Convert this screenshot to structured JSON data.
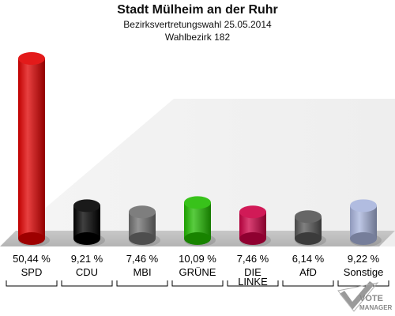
{
  "chart_data": {
    "type": "bar",
    "title": "Stadt Mülheim an der Ruhr",
    "subtitle": "Bezirksvertretungswahl 25.05.2014",
    "subtitle2": "Wahlbezirk 182",
    "categories": [
      "SPD",
      "CDU",
      "MBI",
      "GRÜNE",
      "DIE LINKE",
      "AfD",
      "Sonstige"
    ],
    "category_lines": [
      [
        "SPD"
      ],
      [
        "CDU"
      ],
      [
        "MBI"
      ],
      [
        "GRÜNE"
      ],
      [
        "DIE",
        "LINKE"
      ],
      [
        "AfD"
      ],
      [
        "Sonstige"
      ]
    ],
    "values": [
      50.44,
      9.21,
      7.46,
      10.09,
      7.46,
      6.14,
      9.22
    ],
    "value_labels": [
      "50,44 %",
      "9,21 %",
      "7,46 %",
      "10,09 %",
      "7,46 %",
      "6,14 %",
      "9,22 %"
    ],
    "colors": [
      "#e00000",
      "#000000",
      "#707070",
      "#22bb00",
      "#cc0044",
      "#555555",
      "#a8b4dc"
    ],
    "ylim": [
      0,
      50.44
    ],
    "grid": false
  },
  "logo": {
    "icon": "vote-manager-check-icon",
    "text_line1": "VOTE",
    "text_line2": "MANAGER"
  }
}
